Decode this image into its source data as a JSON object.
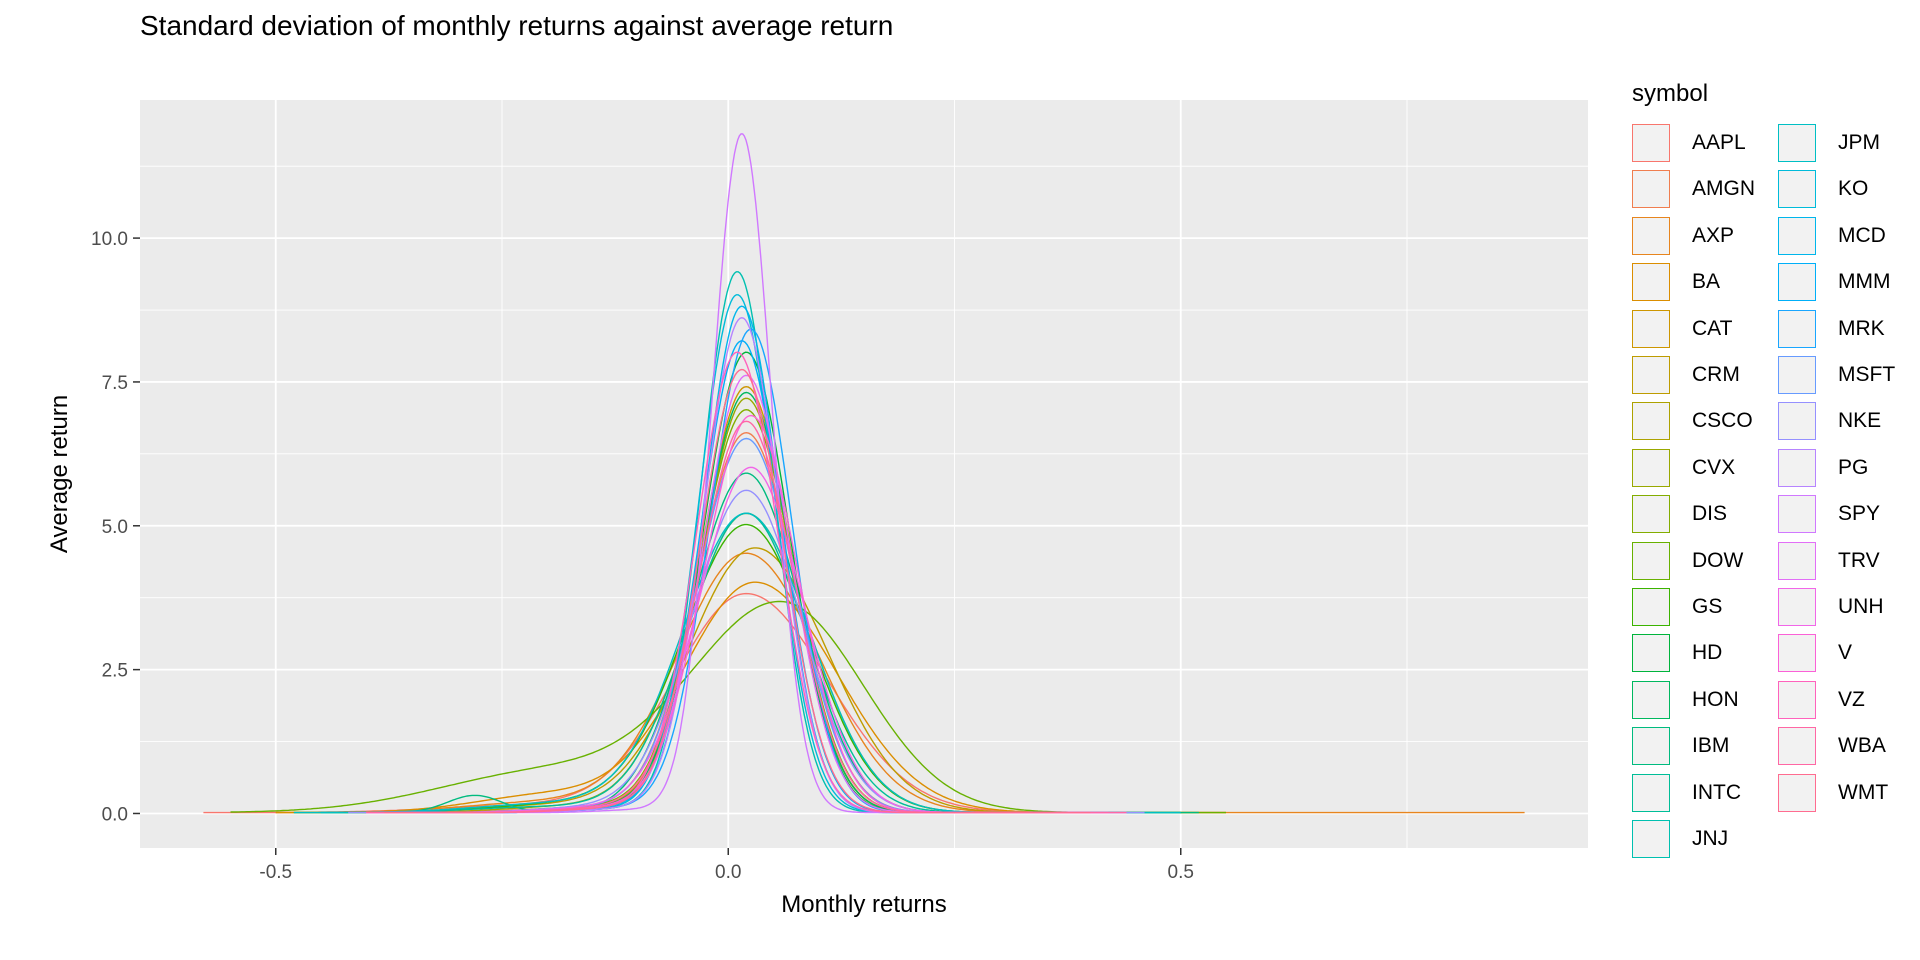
{
  "chart_data": {
    "type": "line",
    "subtype": "density",
    "title": "Standard deviation of monthly returns against average return",
    "xlabel": "Monthly returns",
    "ylabel": "Average return",
    "xlim": [
      -0.65,
      0.95
    ],
    "ylim": [
      -0.6,
      12.4
    ],
    "x_ticks": [
      -0.5,
      0.0,
      0.5
    ],
    "x_tick_labels": [
      "-0.5",
      "0.0",
      "0.5"
    ],
    "y_ticks": [
      0,
      2.5,
      5,
      7.5,
      10
    ],
    "y_tick_labels": [
      "0.0",
      "2.5",
      "5.0",
      "7.5",
      "10.0"
    ],
    "grid": true,
    "legend_title": "symbol",
    "legend_position": "right",
    "series": [
      {
        "name": "AAPL",
        "color": "#F8766D",
        "peak_x": 0.02,
        "peak_y": 3.8,
        "sd_left": 0.08,
        "sd_right": 0.09,
        "tail_amp": 0.12,
        "tail_x": -0.22,
        "tail_sd": 0.1,
        "x_min": -0.58,
        "x_max": 0.55
      },
      {
        "name": "AMGN",
        "color": "#F07E4F",
        "peak_x": 0.02,
        "peak_y": 6.6,
        "sd_left": 0.055,
        "sd_right": 0.055,
        "tail_amp": 0.08,
        "tail_x": -0.16,
        "tail_sd": 0.07,
        "x_min": -0.45,
        "x_max": 0.48
      },
      {
        "name": "AXP",
        "color": "#E7851E",
        "peak_x": 0.02,
        "peak_y": 4.5,
        "sd_left": 0.075,
        "sd_right": 0.08,
        "tail_amp": 0.18,
        "tail_x": -0.2,
        "tail_sd": 0.09,
        "x_min": -0.5,
        "x_max": 0.88
      },
      {
        "name": "BA",
        "color": "#DB8E00",
        "peak_x": 0.03,
        "peak_y": 4.0,
        "sd_left": 0.08,
        "sd_right": 0.09,
        "tail_amp": 0.3,
        "tail_x": -0.2,
        "tail_sd": 0.08,
        "x_min": -0.5,
        "x_max": 0.55
      },
      {
        "name": "CAT",
        "color": "#CD9600",
        "peak_x": 0.02,
        "peak_y": 7.4,
        "sd_left": 0.05,
        "sd_right": 0.05,
        "tail_amp": 0.1,
        "tail_x": -0.14,
        "tail_sd": 0.06,
        "x_min": -0.42,
        "x_max": 0.45
      },
      {
        "name": "CRM",
        "color": "#BE9C00",
        "peak_x": 0.03,
        "peak_y": 4.6,
        "sd_left": 0.075,
        "sd_right": 0.08,
        "tail_amp": 0.12,
        "tail_x": -0.2,
        "tail_sd": 0.08,
        "x_min": -0.48,
        "x_max": 0.52
      },
      {
        "name": "CSCO",
        "color": "#ADA200",
        "peak_x": 0.02,
        "peak_y": 5.2,
        "sd_left": 0.065,
        "sd_right": 0.07,
        "tail_amp": 0.1,
        "tail_x": -0.18,
        "tail_sd": 0.07,
        "x_min": -0.45,
        "x_max": 0.5
      },
      {
        "name": "CVX",
        "color": "#99A800",
        "peak_x": 0.02,
        "peak_y": 7.2,
        "sd_left": 0.05,
        "sd_right": 0.05,
        "tail_amp": 0.08,
        "tail_x": -0.14,
        "tail_sd": 0.06,
        "x_min": -0.4,
        "x_max": 0.42
      },
      {
        "name": "DIS",
        "color": "#83AD00",
        "peak_x": 0.02,
        "peak_y": 7.0,
        "sd_left": 0.052,
        "sd_right": 0.052,
        "tail_amp": 0.1,
        "tail_x": -0.15,
        "tail_sd": 0.06,
        "x_min": -0.42,
        "x_max": 0.45
      },
      {
        "name": "DOW",
        "color": "#68B100",
        "peak_x": 0.06,
        "peak_y": 3.6,
        "sd_left": 0.1,
        "sd_right": 0.09,
        "tail_amp": 0.7,
        "tail_x": -0.2,
        "tail_sd": 0.12,
        "x_min": -0.55,
        "x_max": 0.55
      },
      {
        "name": "GS",
        "color": "#3BB300",
        "peak_x": 0.02,
        "peak_y": 5.0,
        "sd_left": 0.07,
        "sd_right": 0.07,
        "tail_amp": 0.15,
        "tail_x": -0.18,
        "tail_sd": 0.08,
        "x_min": -0.48,
        "x_max": 0.5
      },
      {
        "name": "HD",
        "color": "#00B43C",
        "peak_x": 0.02,
        "peak_y": 8.0,
        "sd_left": 0.048,
        "sd_right": 0.048,
        "tail_amp": 0.08,
        "tail_x": -0.14,
        "tail_sd": 0.06,
        "x_min": -0.4,
        "x_max": 0.42
      },
      {
        "name": "HON",
        "color": "#00B85F",
        "peak_x": 0.02,
        "peak_y": 7.3,
        "sd_left": 0.05,
        "sd_right": 0.05,
        "tail_amp": 0.08,
        "tail_x": -0.15,
        "tail_sd": 0.06,
        "x_min": -0.4,
        "x_max": 0.44
      },
      {
        "name": "IBM",
        "color": "#00BB7F",
        "peak_x": 0.02,
        "peak_y": 5.9,
        "sd_left": 0.06,
        "sd_right": 0.06,
        "tail_amp": 0.3,
        "tail_x": -0.28,
        "tail_sd": 0.03,
        "x_min": -0.45,
        "x_max": 0.52
      },
      {
        "name": "INTC",
        "color": "#00BE98",
        "peak_x": 0.02,
        "peak_y": 5.2,
        "sd_left": 0.065,
        "sd_right": 0.065,
        "tail_amp": 0.1,
        "tail_x": -0.2,
        "tail_sd": 0.08,
        "x_min": -0.45,
        "x_max": 0.5
      },
      {
        "name": "JNJ",
        "color": "#00C0B0",
        "peak_x": 0.01,
        "peak_y": 9.4,
        "sd_left": 0.04,
        "sd_right": 0.04,
        "tail_amp": 0.06,
        "tail_x": -0.12,
        "tail_sd": 0.05,
        "x_min": -0.35,
        "x_max": 0.38
      },
      {
        "name": "JPM",
        "color": "#00BFC4",
        "peak_x": 0.02,
        "peak_y": 5.2,
        "sd_left": 0.07,
        "sd_right": 0.07,
        "tail_amp": 0.15,
        "tail_x": -0.2,
        "tail_sd": 0.08,
        "x_min": -0.48,
        "x_max": 0.5
      },
      {
        "name": "KO",
        "color": "#00BBDA",
        "peak_x": 0.01,
        "peak_y": 9.0,
        "sd_left": 0.042,
        "sd_right": 0.042,
        "tail_amp": 0.06,
        "tail_x": -0.12,
        "tail_sd": 0.05,
        "x_min": -0.35,
        "x_max": 0.38
      },
      {
        "name": "MCD",
        "color": "#00B6EB",
        "peak_x": 0.015,
        "peak_y": 8.8,
        "sd_left": 0.042,
        "sd_right": 0.042,
        "tail_amp": 0.06,
        "tail_x": -0.12,
        "tail_sd": 0.05,
        "x_min": -0.35,
        "x_max": 0.4
      },
      {
        "name": "MMM",
        "color": "#00AFF8",
        "peak_x": 0.015,
        "peak_y": 8.2,
        "sd_left": 0.045,
        "sd_right": 0.045,
        "tail_amp": 0.07,
        "tail_x": -0.13,
        "tail_sd": 0.05,
        "x_min": -0.38,
        "x_max": 0.4
      },
      {
        "name": "MRK",
        "color": "#19A6FF",
        "peak_x": 0.025,
        "peak_y": 8.4,
        "sd_left": 0.045,
        "sd_right": 0.045,
        "tail_amp": 0.06,
        "tail_x": -0.12,
        "tail_sd": 0.05,
        "x_min": -0.38,
        "x_max": 0.4
      },
      {
        "name": "MSFT",
        "color": "#679BFF",
        "peak_x": 0.02,
        "peak_y": 6.5,
        "sd_left": 0.055,
        "sd_right": 0.055,
        "tail_amp": 0.08,
        "tail_x": -0.15,
        "tail_sd": 0.06,
        "x_min": -0.4,
        "x_max": 0.44
      },
      {
        "name": "NKE",
        "color": "#9590FF",
        "peak_x": 0.02,
        "peak_y": 5.6,
        "sd_left": 0.06,
        "sd_right": 0.06,
        "tail_amp": 0.08,
        "tail_x": -0.16,
        "tail_sd": 0.06,
        "x_min": -0.42,
        "x_max": 0.46
      },
      {
        "name": "PG",
        "color": "#B684FF",
        "peak_x": 0.015,
        "peak_y": 8.6,
        "sd_left": 0.042,
        "sd_right": 0.042,
        "tail_amp": 0.06,
        "tail_x": -0.12,
        "tail_sd": 0.05,
        "x_min": -0.35,
        "x_max": 0.38
      },
      {
        "name": "SPY",
        "color": "#D078FF",
        "peak_x": 0.015,
        "peak_y": 11.8,
        "sd_left": 0.033,
        "sd_right": 0.033,
        "tail_amp": 0.05,
        "tail_x": -0.1,
        "tail_sd": 0.04,
        "x_min": -0.3,
        "x_max": 0.35
      },
      {
        "name": "TRV",
        "color": "#E26EF7",
        "peak_x": 0.02,
        "peak_y": 7.6,
        "sd_left": 0.048,
        "sd_right": 0.048,
        "tail_amp": 0.08,
        "tail_x": -0.14,
        "tail_sd": 0.05,
        "x_min": -0.4,
        "x_max": 0.42
      },
      {
        "name": "UNH",
        "color": "#F166E8",
        "peak_x": 0.025,
        "peak_y": 6.0,
        "sd_left": 0.058,
        "sd_right": 0.058,
        "tail_amp": 0.08,
        "tail_x": -0.15,
        "tail_sd": 0.06,
        "x_min": -0.4,
        "x_max": 0.44
      },
      {
        "name": "V",
        "color": "#FB61D7",
        "peak_x": 0.025,
        "peak_y": 6.9,
        "sd_left": 0.052,
        "sd_right": 0.052,
        "tail_amp": 0.07,
        "tail_x": -0.14,
        "tail_sd": 0.05,
        "x_min": -0.4,
        "x_max": 0.42
      },
      {
        "name": "VZ",
        "color": "#FF62BC",
        "peak_x": 0.01,
        "peak_y": 8.0,
        "sd_left": 0.045,
        "sd_right": 0.045,
        "tail_amp": 0.07,
        "tail_x": -0.13,
        "tail_sd": 0.05,
        "x_min": -0.38,
        "x_max": 0.4
      },
      {
        "name": "WBA",
        "color": "#FF67A4",
        "peak_x": 0.02,
        "peak_y": 6.8,
        "sd_left": 0.052,
        "sd_right": 0.052,
        "tail_amp": 0.08,
        "tail_x": -0.14,
        "tail_sd": 0.05,
        "x_min": -0.4,
        "x_max": 0.44
      },
      {
        "name": "WMT",
        "color": "#FF6C90",
        "peak_x": 0.015,
        "peak_y": 7.7,
        "sd_left": 0.046,
        "sd_right": 0.046,
        "tail_amp": 0.07,
        "tail_x": -0.13,
        "tail_sd": 0.05,
        "x_min": -0.38,
        "x_max": 0.4
      }
    ]
  },
  "colors": {
    "panel_background": "#EBEBEB",
    "grid_major": "#FFFFFF",
    "tick_text": "#4D4D4D",
    "legend_key_background": "#F2F2F2"
  }
}
